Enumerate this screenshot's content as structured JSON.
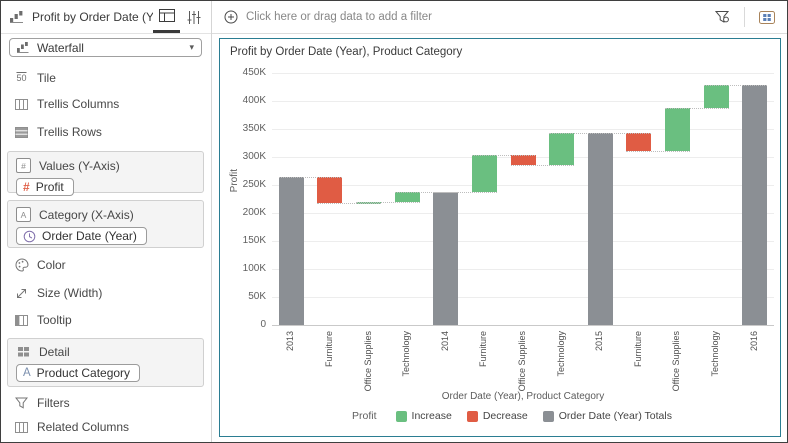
{
  "sidebar": {
    "title": "Profit by Order Date (Year), Pr...",
    "viz_selector": {
      "value": "Waterfall"
    },
    "drop_targets": {
      "tile": "Tile",
      "trellis_columns": "Trellis Columns",
      "trellis_rows": "Trellis Rows",
      "values_y_axis": {
        "label": "Values (Y-Axis)",
        "pill": "Profit"
      },
      "category_x_axis": {
        "label": "Category (X-Axis)",
        "pill": "Order Date (Year)"
      },
      "color": "Color",
      "size_width": "Size (Width)",
      "tooltip": "Tooltip",
      "detail": {
        "label": "Detail",
        "pill": "Product Category"
      },
      "filters": "Filters",
      "related_columns": "Related Columns"
    }
  },
  "filter_bar": {
    "prompt": "Click here or drag data to add a filter"
  },
  "icons": {
    "caret_down": "▾",
    "tile_glyph": "50",
    "hash_glyph": "#",
    "letter_a_glyph": "A"
  },
  "chart_data": {
    "type": "waterfall",
    "title": "Profit by Order Date (Year), Product Category",
    "xlabel": "Order Date (Year), Product Category",
    "ylabel": "Profit",
    "ylim": [
      0,
      450000
    ],
    "ytick_step": 50000,
    "ytick_labels": [
      "0",
      "50K",
      "100K",
      "150K",
      "200K",
      "250K",
      "300K",
      "350K",
      "400K",
      "450K"
    ],
    "grid": true,
    "bars": [
      {
        "label": "2013",
        "kind": "total",
        "start": 0,
        "end": 265000
      },
      {
        "label": "Furniture",
        "kind": "decrease",
        "start": 265000,
        "end": 217000
      },
      {
        "label": "Office Supplies",
        "kind": "increase",
        "start": 217000,
        "end": 220000
      },
      {
        "label": "Technology",
        "kind": "increase",
        "start": 220000,
        "end": 238000
      },
      {
        "label": "2014",
        "kind": "total",
        "start": 0,
        "end": 238000
      },
      {
        "label": "Furniture",
        "kind": "increase",
        "start": 238000,
        "end": 303000
      },
      {
        "label": "Office Supplies",
        "kind": "decrease",
        "start": 303000,
        "end": 285000
      },
      {
        "label": "Technology",
        "kind": "increase",
        "start": 285000,
        "end": 343000
      },
      {
        "label": "2015",
        "kind": "total",
        "start": 0,
        "end": 343000
      },
      {
        "label": "Furniture",
        "kind": "decrease",
        "start": 343000,
        "end": 311000
      },
      {
        "label": "Office Supplies",
        "kind": "increase",
        "start": 311000,
        "end": 387000
      },
      {
        "label": "Technology",
        "kind": "increase",
        "start": 387000,
        "end": 429000
      },
      {
        "label": "2016",
        "kind": "total",
        "start": 0,
        "end": 429000
      }
    ],
    "legend": {
      "title": "Profit",
      "position": "bottom",
      "items": [
        {
          "label": "Increase",
          "kind": "increase",
          "color": "#6abf80"
        },
        {
          "label": "Decrease",
          "kind": "decrease",
          "color": "#e05c44"
        },
        {
          "label": "Order Date (Year) Totals",
          "kind": "total",
          "color": "#8b8f94"
        }
      ]
    }
  },
  "colors": {
    "panel_border": "#2b7d92",
    "increase": "#6abf80",
    "decrease": "#e05c44",
    "totals": "#8b8f94"
  }
}
